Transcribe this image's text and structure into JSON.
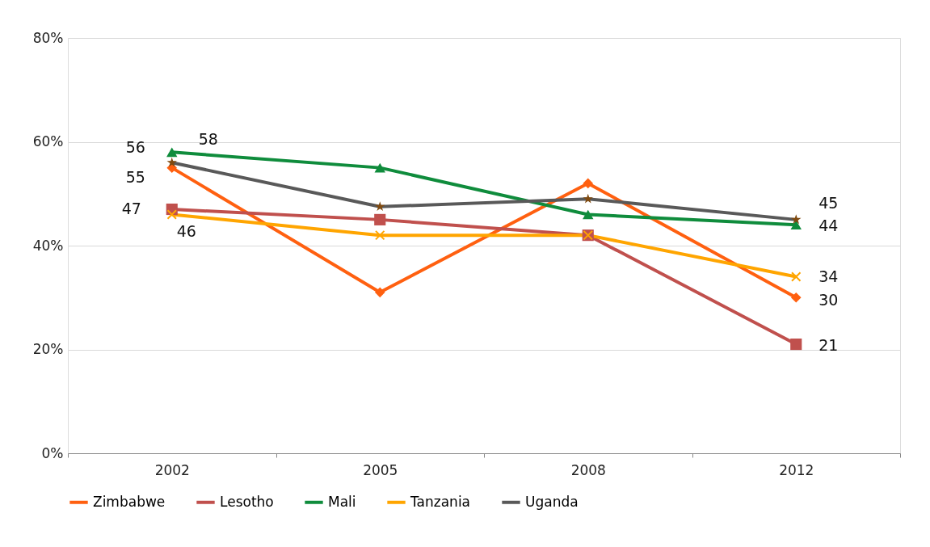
{
  "chart_data": {
    "type": "line",
    "categories": [
      "2002",
      "2005",
      "2008",
      "2012"
    ],
    "series": [
      {
        "name": "Zimbabwe",
        "color": "#ff6010",
        "marker": "diamond",
        "values": [
          55,
          31,
          52,
          30
        ],
        "value_labels": [
          "55",
          null,
          null,
          "30"
        ]
      },
      {
        "name": "Lesotho",
        "color": "#c0504d",
        "marker": "square",
        "values": [
          47,
          45,
          42,
          21
        ],
        "value_labels": [
          "47",
          null,
          null,
          "21"
        ]
      },
      {
        "name": "Mali",
        "color": "#0f8c3c",
        "marker": "triangle",
        "values": [
          58,
          55,
          46,
          44
        ],
        "value_labels": [
          "58",
          null,
          null,
          "44"
        ]
      },
      {
        "name": "Tanzania",
        "color": "#ffa500",
        "marker": "cross",
        "values": [
          46,
          42,
          42,
          34
        ],
        "value_labels": [
          "46",
          null,
          null,
          "34"
        ]
      },
      {
        "name": "Uganda",
        "color": "#595959",
        "marker": "star",
        "values": [
          56,
          47.5,
          49,
          45
        ],
        "value_labels": [
          "56",
          null,
          null,
          "45"
        ]
      }
    ],
    "ylim": [
      0,
      80
    ],
    "yticks": [
      {
        "value": 0,
        "label": "0%"
      },
      {
        "value": 20,
        "label": "20%"
      },
      {
        "value": 40,
        "label": "40%"
      },
      {
        "value": 60,
        "label": "60%"
      },
      {
        "value": 80,
        "label": "80%"
      }
    ],
    "grid": "y",
    "legend": "bottom",
    "line_style": "solid"
  }
}
